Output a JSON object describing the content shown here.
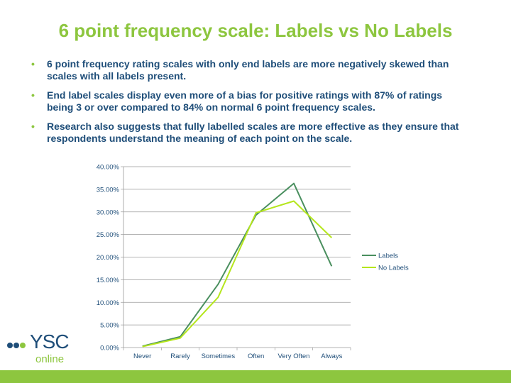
{
  "slide": {
    "title": "6 point frequency scale: Labels vs No Labels",
    "bullets": [
      "6 point frequency rating scales with only end labels are more negatively skewed than scales with all labels present.",
      "End label scales display even more of a bias for positive ratings with 87% of ratings being 3 or over compared to 84% on normal 6 point frequency scales.",
      "Research also suggests that fully labelled scales are more effective as they ensure that respondents understand the meaning of each point on the scale."
    ],
    "bullet_glyph": "•"
  },
  "logo": {
    "brand": "YSC",
    "sub": "online"
  },
  "colors": {
    "accent": "#8dc63f",
    "text": "#1f4e79",
    "labels_series": "#4a8f5f",
    "nolabels_series": "#b5e61d"
  },
  "chart_data": {
    "type": "line",
    "categories": [
      "Never",
      "Rarely",
      "Sometimes",
      "Often",
      "Very Often",
      "Always"
    ],
    "series": [
      {
        "name": "Labels",
        "values": [
          0.3,
          2.4,
          14.0,
          29.3,
          36.3,
          18.0
        ]
      },
      {
        "name": "No Labels",
        "values": [
          0.2,
          2.1,
          11.1,
          29.8,
          32.4,
          24.3
        ]
      }
    ],
    "ylim": [
      0,
      40
    ],
    "yticks": [
      "0.00%",
      "5.00%",
      "10.00%",
      "15.00%",
      "20.00%",
      "25.00%",
      "30.00%",
      "35.00%",
      "40.00%"
    ],
    "grid": true,
    "legend": "right"
  }
}
